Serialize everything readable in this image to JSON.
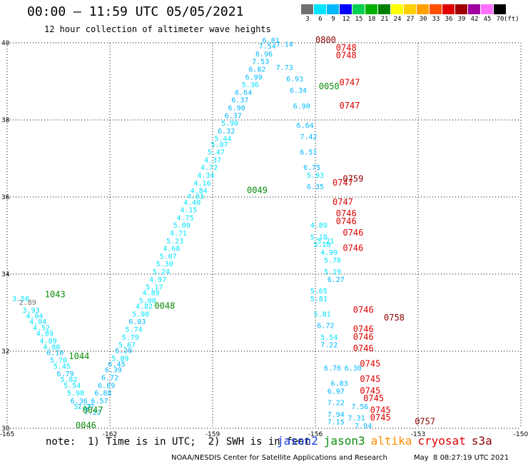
{
  "header": {
    "title": "00:00 – 11:59 UTC 05/05/2021",
    "subtitle": "12 hour collection of altimeter wave heights"
  },
  "colorbar": {
    "unit": "(ft)",
    "labels": [
      "3",
      "6",
      "9",
      "12",
      "15",
      "18",
      "21",
      "24",
      "27",
      "30",
      "33",
      "36",
      "39",
      "42",
      "45",
      "70"
    ],
    "colors": [
      "#707070",
      "#00e5ff",
      "#00b8ff",
      "#0000ff",
      "#00d050",
      "#00b000",
      "#008000",
      "#ffff00",
      "#ffd000",
      "#ffa000",
      "#ff5000",
      "#e00000",
      "#a00000",
      "#a000a0",
      "#ff70ff",
      "#000000"
    ]
  },
  "chart_data": {
    "type": "scatter",
    "title": "00:00 – 11:59 UTC 05/05/2021",
    "subtitle": "12 hour collection of altimeter wave heights",
    "xlim": [
      -165,
      -150
    ],
    "ylim": [
      30,
      40
    ],
    "x_ticks": [
      "-165",
      "-162",
      "-159",
      "-156",
      "-153",
      "-150"
    ],
    "y_ticks": [
      "30",
      "32",
      "34",
      "36",
      "38",
      "40"
    ],
    "grid": true,
    "units": "SWH in feet; time in UTC",
    "series": [
      {
        "name": "jason2",
        "color": "#1a3fe0",
        "points": []
      },
      {
        "name": "jason3",
        "color": "#0a8a0a",
        "time_labels": [
          {
            "x": -158.0,
            "y": 36.1,
            "text": "0049"
          },
          {
            "x": -160.7,
            "y": 33.1,
            "text": "0048"
          },
          {
            "x": -162.8,
            "y": 30.4,
            "text": "0047"
          },
          {
            "x": -163.0,
            "y": 30.0,
            "text": "0046"
          },
          {
            "x": -163.2,
            "y": 31.8,
            "text": "1044"
          },
          {
            "x": -163.9,
            "y": 33.4,
            "text": "1043"
          },
          {
            "x": -155.9,
            "y": 38.8,
            "text": "0050"
          }
        ],
        "points": [
          {
            "x": -164.6,
            "y": 33.3,
            "v": 3.56
          },
          {
            "x": -164.4,
            "y": 33.2,
            "v": 2.89
          },
          {
            "x": -164.3,
            "y": 33.0,
            "v": 3.93
          },
          {
            "x": -164.2,
            "y": 32.85,
            "v": 4.04
          },
          {
            "x": -164.1,
            "y": 32.7,
            "v": 4.04
          },
          {
            "x": -164.0,
            "y": 32.55,
            "v": 4.52
          },
          {
            "x": -163.9,
            "y": 32.4,
            "v": 4.89
          },
          {
            "x": -163.8,
            "y": 32.2,
            "v": 4.89
          },
          {
            "x": -163.7,
            "y": 32.05,
            "v": 4.8
          },
          {
            "x": -163.6,
            "y": 31.9,
            "v": 6.1
          },
          {
            "x": -163.5,
            "y": 31.7,
            "v": 5.7
          },
          {
            "x": -163.4,
            "y": 31.55,
            "v": 5.45
          },
          {
            "x": -163.3,
            "y": 31.35,
            "v": 6.79
          },
          {
            "x": -163.2,
            "y": 31.2,
            "v": 5.82
          },
          {
            "x": -163.1,
            "y": 31.05,
            "v": 5.54
          },
          {
            "x": -163.0,
            "y": 30.85,
            "v": 5.98
          },
          {
            "x": -162.9,
            "y": 30.65,
            "v": 6.36
          },
          {
            "x": -162.8,
            "y": 30.5,
            "v": 5.17
          },
          {
            "x": -162.7,
            "y": 30.5,
            "v": 7.27
          },
          {
            "x": -162.5,
            "y": 30.35,
            "v": 7.22
          },
          {
            "x": -162.3,
            "y": 30.65,
            "v": 6.57
          },
          {
            "x": -162.2,
            "y": 30.85,
            "v": 6.88
          },
          {
            "x": -162.1,
            "y": 31.05,
            "v": 6.89
          },
          {
            "x": -162.0,
            "y": 31.25,
            "v": 6.72
          },
          {
            "x": -161.9,
            "y": 31.45,
            "v": 6.39
          },
          {
            "x": -161.8,
            "y": 31.6,
            "v": 6.45
          },
          {
            "x": -161.7,
            "y": 31.75,
            "v": 5.89
          },
          {
            "x": -161.6,
            "y": 31.95,
            "v": 6.2
          },
          {
            "x": -161.5,
            "y": 32.1,
            "v": 5.67
          },
          {
            "x": -161.4,
            "y": 32.3,
            "v": 5.79
          },
          {
            "x": -161.3,
            "y": 32.5,
            "v": 5.74
          },
          {
            "x": -161.2,
            "y": 32.7,
            "v": 6.03
          },
          {
            "x": -161.1,
            "y": 32.9,
            "v": 5.9
          },
          {
            "x": -161.0,
            "y": 33.1,
            "v": 4.82
          },
          {
            "x": -160.9,
            "y": 33.25,
            "v": 5.0
          },
          {
            "x": -160.8,
            "y": 33.45,
            "v": 4.89
          },
          {
            "x": -160.7,
            "y": 33.6,
            "v": 5.17
          },
          {
            "x": -160.6,
            "y": 33.8,
            "v": 4.97
          },
          {
            "x": -160.5,
            "y": 34.0,
            "v": 5.24
          },
          {
            "x": -160.4,
            "y": 34.2,
            "v": 5.3
          },
          {
            "x": -160.3,
            "y": 34.4,
            "v": 5.07
          },
          {
            "x": -160.2,
            "y": 34.6,
            "v": 4.68
          },
          {
            "x": -160.1,
            "y": 34.8,
            "v": 5.23
          },
          {
            "x": -160.0,
            "y": 35.0,
            "v": 4.71
          },
          {
            "x": -159.9,
            "y": 35.2,
            "v": 5.09
          },
          {
            "x": -159.8,
            "y": 35.4,
            "v": 4.75
          },
          {
            "x": -159.7,
            "y": 35.6,
            "v": 4.15
          },
          {
            "x": -159.6,
            "y": 35.8,
            "v": 4.4
          },
          {
            "x": -159.5,
            "y": 35.95,
            "v": 4.83
          },
          {
            "x": -159.4,
            "y": 36.1,
            "v": 4.84
          },
          {
            "x": -159.3,
            "y": 36.3,
            "v": 4.16
          },
          {
            "x": -159.2,
            "y": 36.5,
            "v": 4.34
          },
          {
            "x": -159.1,
            "y": 36.7,
            "v": 4.72
          },
          {
            "x": -159.0,
            "y": 36.9,
            "v": 4.37
          },
          {
            "x": -158.9,
            "y": 37.1,
            "v": 5.47
          },
          {
            "x": -158.8,
            "y": 37.3,
            "v": 5.87
          },
          {
            "x": -158.7,
            "y": 37.45,
            "v": 5.44
          },
          {
            "x": -158.6,
            "y": 37.65,
            "v": 6.32
          },
          {
            "x": -158.5,
            "y": 37.85,
            "v": 5.9
          },
          {
            "x": -158.4,
            "y": 38.05,
            "v": 6.37
          },
          {
            "x": -158.3,
            "y": 38.25,
            "v": 6.9
          },
          {
            "x": -158.2,
            "y": 38.45,
            "v": 6.37
          },
          {
            "x": -158.1,
            "y": 38.65,
            "v": 6.64
          },
          {
            "x": -157.9,
            "y": 38.85,
            "v": 5.36
          },
          {
            "x": -157.8,
            "y": 39.05,
            "v": 6.99
          },
          {
            "x": -157.7,
            "y": 39.25,
            "v": 6.82
          },
          {
            "x": -157.6,
            "y": 39.45,
            "v": 7.53
          },
          {
            "x": -157.5,
            "y": 39.65,
            "v": 6.96
          },
          {
            "x": -157.4,
            "y": 39.85,
            "v": 7.54
          },
          {
            "x": -157.3,
            "y": 40.0,
            "v": 6.81
          },
          {
            "x": -156.9,
            "y": 39.9,
            "v": 7.14
          },
          {
            "x": -156.9,
            "y": 39.3,
            "v": 7.73
          },
          {
            "x": -156.6,
            "y": 39.0,
            "v": 6.93
          },
          {
            "x": -156.5,
            "y": 38.7,
            "v": 6.34
          },
          {
            "x": -156.4,
            "y": 38.3,
            "v": 6.9
          },
          {
            "x": -156.3,
            "y": 37.8,
            "v": 6.64
          },
          {
            "x": -156.2,
            "y": 37.5,
            "v": 7.42
          },
          {
            "x": -156.2,
            "y": 37.1,
            "v": 6.51
          },
          {
            "x": -156.1,
            "y": 36.7,
            "v": 6.75
          },
          {
            "x": -156.0,
            "y": 36.5,
            "v": 5.93
          },
          {
            "x": -156.0,
            "y": 36.2,
            "v": 6.35
          },
          {
            "x": -155.9,
            "y": 35.2,
            "v": 4.89
          },
          {
            "x": -155.9,
            "y": 34.9,
            "v": 5.18
          },
          {
            "x": -155.8,
            "y": 34.7,
            "v": 5.1
          },
          {
            "x": -155.7,
            "y": 34.8,
            "v": 5.21
          },
          {
            "x": -155.6,
            "y": 34.5,
            "v": 4.99
          },
          {
            "x": -155.5,
            "y": 34.3,
            "v": 5.7
          },
          {
            "x": -155.5,
            "y": 34.0,
            "v": 5.19
          },
          {
            "x": -155.4,
            "y": 33.8,
            "v": 6.27
          },
          {
            "x": -155.9,
            "y": 33.5,
            "v": 5.65
          },
          {
            "x": -155.9,
            "y": 33.3,
            "v": 5.81
          },
          {
            "x": -155.8,
            "y": 32.9,
            "v": 5.81
          },
          {
            "x": -155.7,
            "y": 32.6,
            "v": 6.72
          },
          {
            "x": -155.6,
            "y": 32.3,
            "v": 5.54
          },
          {
            "x": -155.6,
            "y": 32.1,
            "v": 7.22
          },
          {
            "x": -155.5,
            "y": 31.5,
            "v": 6.76
          },
          {
            "x": -155.3,
            "y": 31.1,
            "v": 6.83
          },
          {
            "x": -155.4,
            "y": 30.9,
            "v": 6.97
          },
          {
            "x": -155.4,
            "y": 30.6,
            "v": 7.22
          },
          {
            "x": -155.4,
            "y": 30.3,
            "v": 7.94
          },
          {
            "x": -155.4,
            "y": 30.1,
            "v": 7.15
          },
          {
            "x": -154.9,
            "y": 31.5,
            "v": 6.3
          },
          {
            "x": -154.7,
            "y": 30.5,
            "v": 7.56
          },
          {
            "x": -154.8,
            "y": 30.2,
            "v": 7.31
          },
          {
            "x": -154.6,
            "y": 30.0,
            "v": 7.94
          }
        ]
      },
      {
        "name": "altika",
        "color": "#ff8c00",
        "points": []
      },
      {
        "name": "cryosat",
        "color": "#e00000",
        "time_labels": [
          {
            "x": -155.4,
            "y": 39.8,
            "text": "0748"
          },
          {
            "x": -155.4,
            "y": 39.6,
            "text": "0748"
          },
          {
            "x": -155.3,
            "y": 38.9,
            "text": "0747"
          },
          {
            "x": -155.3,
            "y": 38.3,
            "text": "0747"
          },
          {
            "x": -155.5,
            "y": 36.3,
            "text": "0747"
          },
          {
            "x": -155.5,
            "y": 35.8,
            "text": "0747"
          },
          {
            "x": -155.4,
            "y": 35.5,
            "text": "0746"
          },
          {
            "x": -155.4,
            "y": 35.3,
            "text": "0746"
          },
          {
            "x": -155.2,
            "y": 35.0,
            "text": "0746"
          },
          {
            "x": -155.2,
            "y": 34.6,
            "text": "0746"
          },
          {
            "x": -154.9,
            "y": 33.0,
            "text": "0746"
          },
          {
            "x": -154.9,
            "y": 32.5,
            "text": "0746"
          },
          {
            "x": -154.9,
            "y": 32.3,
            "text": "0746"
          },
          {
            "x": -154.9,
            "y": 32.0,
            "text": "0746"
          },
          {
            "x": -154.7,
            "y": 31.6,
            "text": "0745"
          },
          {
            "x": -154.7,
            "y": 31.2,
            "text": "0745"
          },
          {
            "x": -154.7,
            "y": 30.9,
            "text": "0745"
          },
          {
            "x": -154.6,
            "y": 30.7,
            "text": "0745"
          },
          {
            "x": -154.4,
            "y": 30.4,
            "text": "0745"
          },
          {
            "x": -154.4,
            "y": 30.2,
            "text": "0745"
          }
        ],
        "points": []
      },
      {
        "name": "s3a",
        "color": "#8b0000",
        "time_labels": [
          {
            "x": -156.0,
            "y": 40.0,
            "text": "0800"
          },
          {
            "x": -155.2,
            "y": 36.4,
            "text": "0759"
          },
          {
            "x": -154.0,
            "y": 32.8,
            "text": "0758"
          },
          {
            "x": -153.1,
            "y": 30.1,
            "text": "0757"
          }
        ],
        "points": []
      }
    ]
  },
  "footer": {
    "note": "note:  1) Time is in UTC;  2) SWH is in feet",
    "center": "NOAA/NESDIS Center for Satellite Applications and Research",
    "timestamp": "May  8 08:27:19 UTC 2021"
  },
  "legend": [
    {
      "label": "jason2",
      "color": "#1a3fe0"
    },
    {
      "label": "jason3",
      "color": "#0a8a0a"
    },
    {
      "label": "altika",
      "color": "#ff8c00"
    },
    {
      "label": "cryosat",
      "color": "#e00000"
    },
    {
      "label": "s3a",
      "color": "#8b0000"
    }
  ]
}
